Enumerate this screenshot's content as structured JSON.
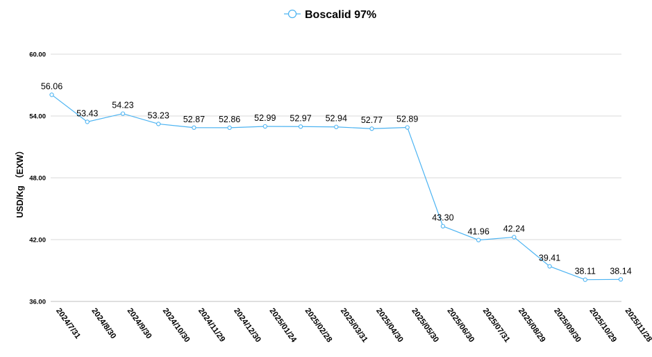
{
  "chart_data": {
    "type": "line",
    "title": "",
    "xlabel": "",
    "ylabel": "USD/Kg （EXW）",
    "ylim": [
      36,
      60
    ],
    "yticks": [
      "36.00",
      "42.00",
      "48.00",
      "54.00",
      "60.00"
    ],
    "grid": true,
    "legend_position": "top-center",
    "colors": {
      "series": "#4BB3F2",
      "grid": "#d9d9d9",
      "text": "#000000"
    },
    "categories": [
      "2024/7/31",
      "2024/8/30",
      "2024/9/30",
      "2024/10/30",
      "2024/11/29",
      "2024/12/30",
      "2025/01/24",
      "2025/02/28",
      "2025/03/31",
      "2025/04/30",
      "2025/05/30",
      "2025/06/30",
      "2025/07/31",
      "2025/08/29",
      "2025/09/30",
      "2025/10/29",
      "2025/11/28"
    ],
    "series": [
      {
        "name": "Boscalid 97%",
        "values": [
          56.06,
          53.43,
          54.23,
          53.23,
          52.87,
          52.86,
          52.99,
          52.97,
          52.94,
          52.77,
          52.89,
          43.3,
          41.96,
          42.24,
          39.41,
          38.11,
          38.14
        ],
        "labels": [
          "56.06",
          "53.43",
          "54.23",
          "53.23",
          "52.87",
          "52.86",
          "52.99",
          "52.97",
          "52.94",
          "52.77",
          "52.89",
          "43.30",
          "41.96",
          "42.24",
          "39.41",
          "38.11",
          "38.14"
        ]
      }
    ]
  }
}
